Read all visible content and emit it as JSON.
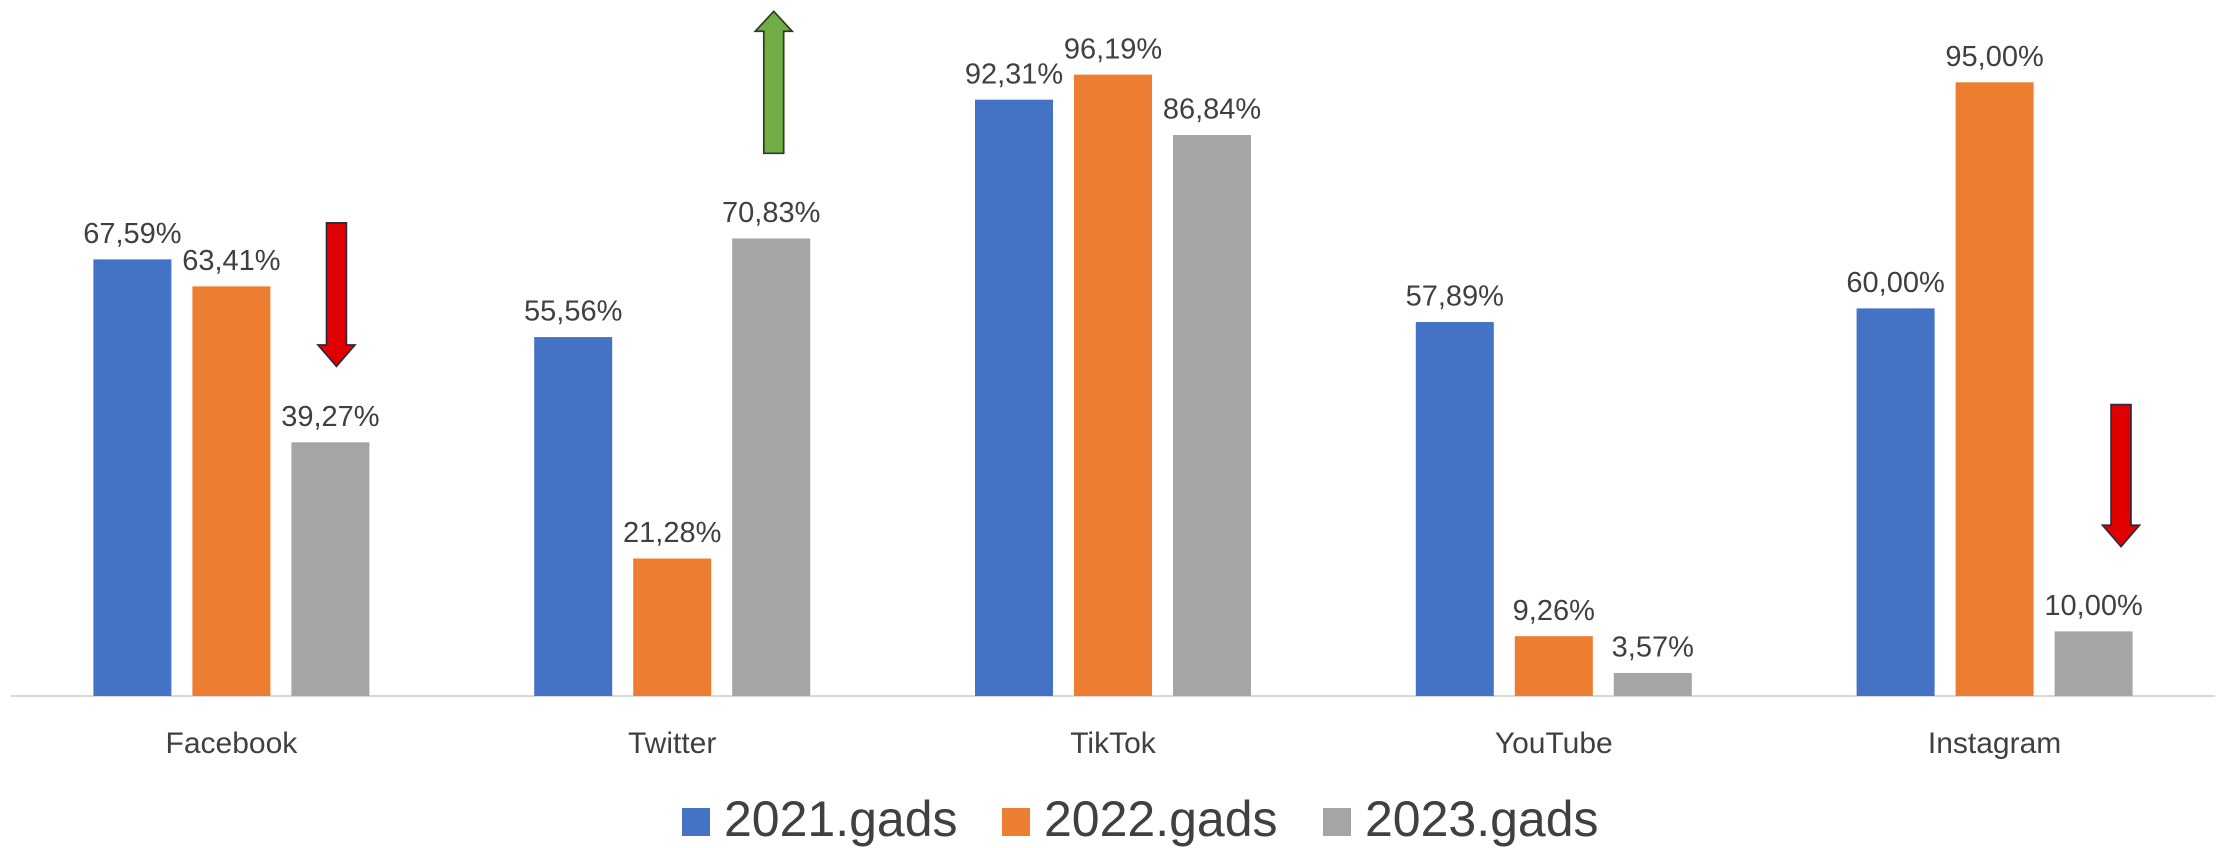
{
  "chart_data": {
    "type": "bar",
    "categories": [
      "Facebook",
      "Twitter",
      "TikTok",
      "YouTube",
      "Instagram"
    ],
    "series": [
      {
        "name": "2021.gads",
        "color": "#4472c4",
        "values": [
          67.59,
          55.56,
          92.31,
          57.89,
          60.0
        ],
        "value_labels": [
          "67,59%",
          "55,56%",
          "92,31%",
          "57,89%",
          "60,00%"
        ]
      },
      {
        "name": "2022.gads",
        "color": "#ed7d31",
        "values": [
          63.41,
          21.28,
          96.19,
          9.26,
          95.0
        ],
        "value_labels": [
          "63,41%",
          "21,28%",
          "96,19%",
          "9,26%",
          "95,00%"
        ]
      },
      {
        "name": "2023.gads",
        "color": "#a5a5a5",
        "values": [
          39.27,
          70.83,
          86.84,
          3.57,
          10.0
        ],
        "value_labels": [
          "39,27%",
          "70,83%",
          "86,84%",
          "3,57%",
          "10,00%"
        ]
      }
    ],
    "ylim": [
      0,
      100
    ]
  }
}
